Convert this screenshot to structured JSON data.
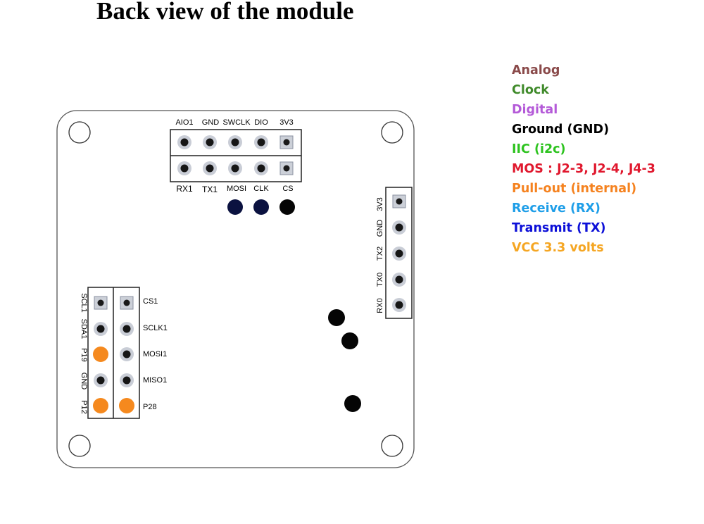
{
  "title": "Back view of the module",
  "legend": [
    {
      "label": "Analog",
      "color": "#8a4a4a"
    },
    {
      "label": "Clock",
      "color": "#3f8a2a"
    },
    {
      "label": "Digital",
      "color": "#b45ad8"
    },
    {
      "label": "Ground (GND)",
      "color": "#000000"
    },
    {
      "label": "IIC (i2c)",
      "color": "#2dc31f"
    },
    {
      "label": "MOS : J2-3, J2-4, J4-3",
      "color": "#e0182e"
    },
    {
      "label": "Pull-out (internal)",
      "color": "#f5821f"
    },
    {
      "label": "Receive (RX)",
      "color": "#1e9ee8"
    },
    {
      "label": "Transmit (TX)",
      "color": "#0d10d8"
    },
    {
      "label": "VCC 3.3 volts",
      "color": "#f5a623"
    }
  ],
  "top_header": {
    "top_labels": [
      "AIO1",
      "GND",
      "SWCLK",
      "DIO",
      "3V3"
    ],
    "bottom_labels": [
      "RX1",
      "TX1",
      "MOSI",
      "CLK",
      "CS"
    ]
  },
  "right_header": {
    "labels": [
      "3V3",
      "GND",
      "TX2",
      "TX0",
      "RX0"
    ]
  },
  "left_header": {
    "left_labels": [
      "SCL1",
      "SDA1",
      "P19",
      "GND",
      "P12"
    ],
    "right_labels": [
      "CS1",
      "SCLK1",
      "MOSI1",
      "MISO1",
      "P28"
    ]
  }
}
